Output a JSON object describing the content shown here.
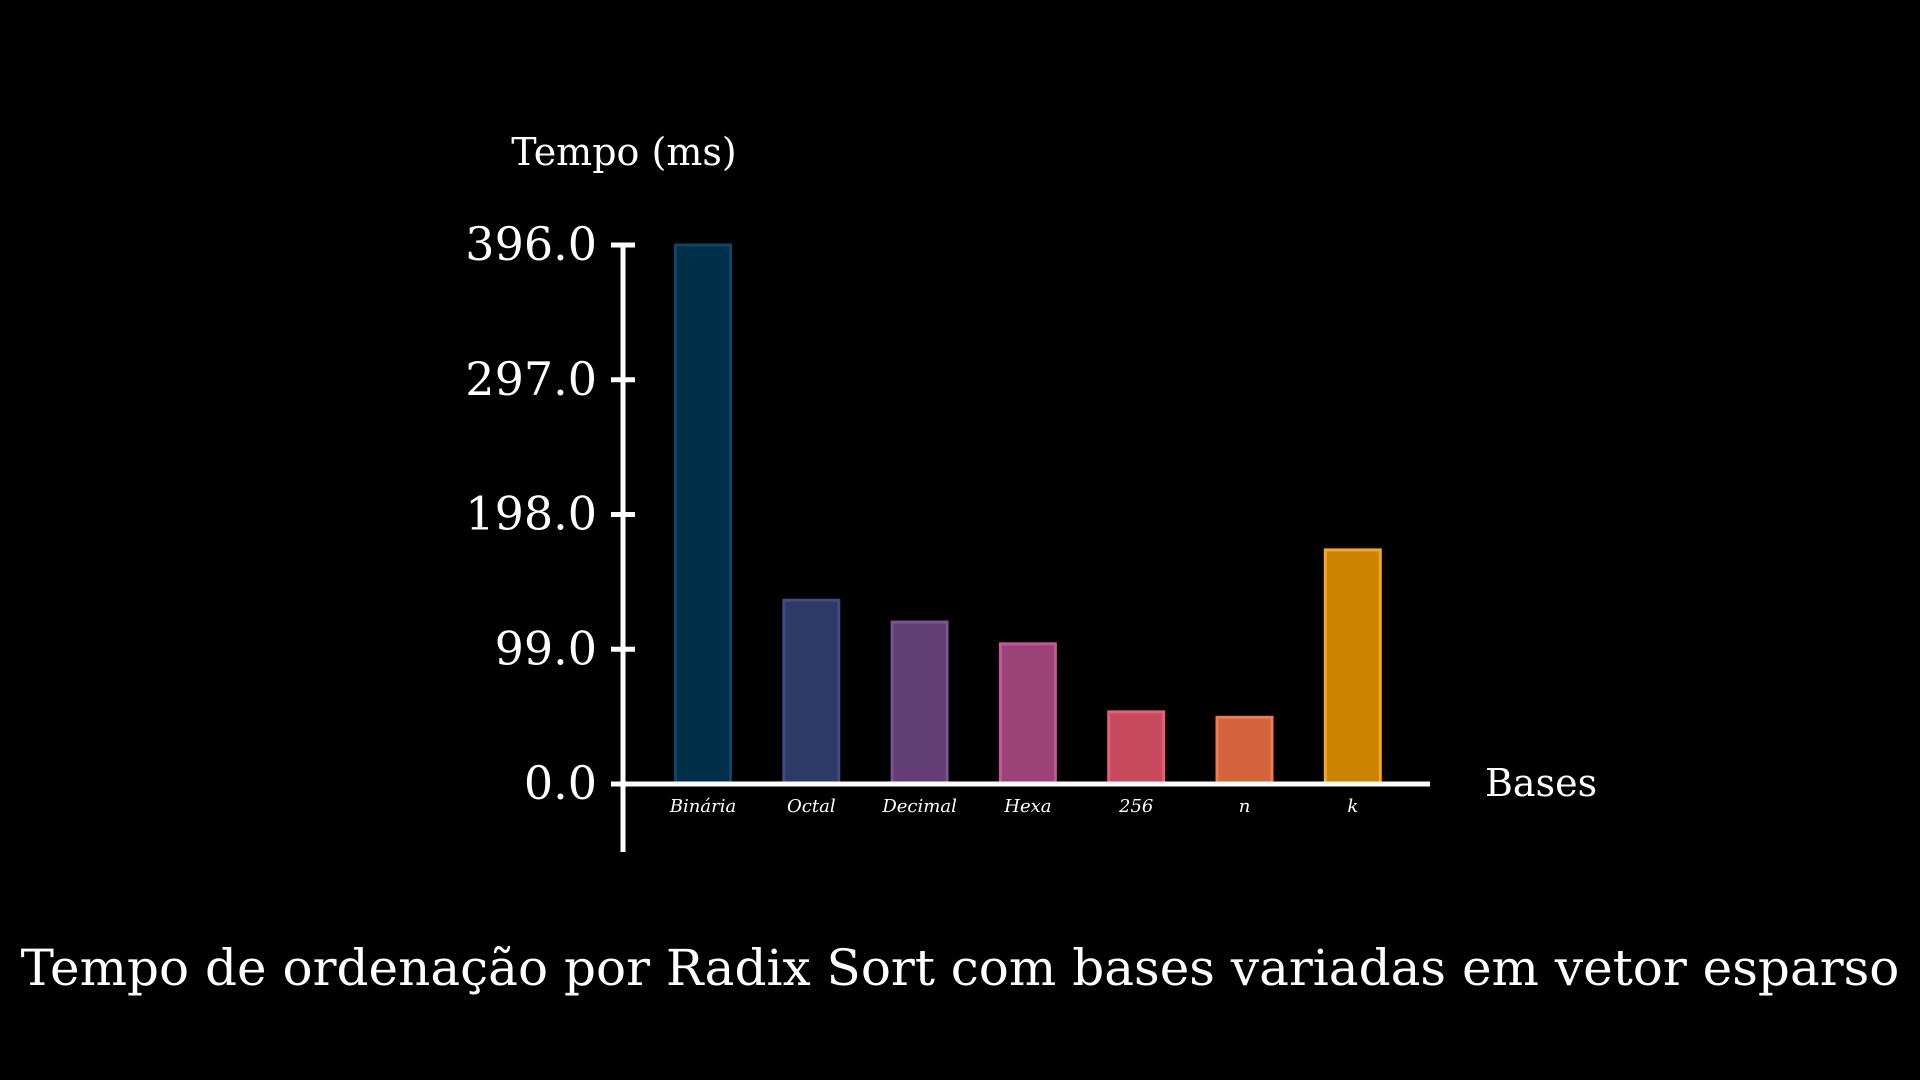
{
  "chart_data": {
    "type": "bar",
    "title": "Tempo de ordenação por Radix Sort com bases variadas em vetor esparso",
    "xlabel": "Bases",
    "ylabel": "Tempo (ms)",
    "ylim": [
      0,
      396
    ],
    "yticks": [
      0,
      99,
      198,
      297,
      396
    ],
    "ytick_labels": [
      "0.0",
      "99.0",
      "198.0",
      "297.0",
      "396.0"
    ],
    "categories": [
      "Binária",
      "Octal",
      "Decimal",
      "Hexa",
      "256",
      "n",
      "k"
    ],
    "values": [
      396,
      135,
      119,
      103,
      53,
      49,
      172
    ],
    "colors": [
      "#003049",
      "#2e3a66",
      "#613f74",
      "#9b4277",
      "#c84a5d",
      "#d2633b",
      "#cc8400"
    ],
    "edge_colors": [
      "#0b4668",
      "#3e4c84",
      "#7b5394",
      "#c2589b",
      "#e85f74",
      "#f27a4d",
      "#f4a62a"
    ],
    "grid": false,
    "legend": "none"
  }
}
